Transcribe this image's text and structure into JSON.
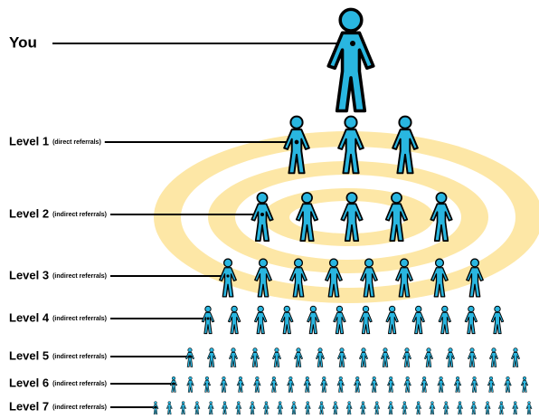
{
  "you": "You",
  "levels": [
    {
      "label": "Level 1",
      "note": "(direct referrals)"
    },
    {
      "label": "Level 2",
      "note": "(indirect referrals)"
    },
    {
      "label": "Level 3",
      "note": "(indirect referrals)"
    },
    {
      "label": "Level 4",
      "note": "(indirect referrals)"
    },
    {
      "label": "Level 5",
      "note": "(indirect referrals)"
    },
    {
      "label": "Level 6",
      "note": "(indirect referrals)"
    },
    {
      "label": "Level 7",
      "note": "(indirect referrals)"
    }
  ]
}
